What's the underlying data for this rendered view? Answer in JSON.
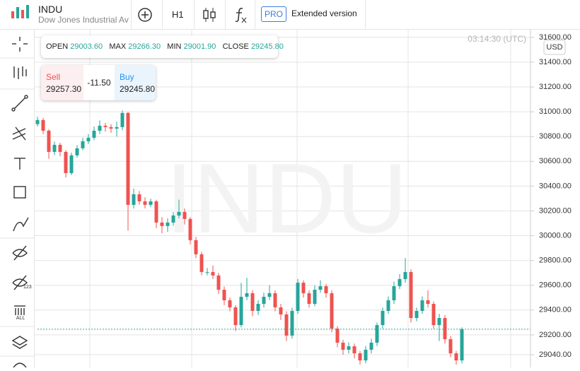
{
  "header": {
    "symbol": "INDU",
    "name": "Dow Jones Industrial Ave",
    "timeframe": "H1",
    "pro_badge": "PRO",
    "pro_label": "Extended version"
  },
  "left_toolbar": {
    "badge_123": "123",
    "badge_all": "ALL"
  },
  "quote": {
    "open_label": "OPEN",
    "open": "29003.60",
    "max_label": "MAX",
    "max": "29266.30",
    "min_label": "MIN",
    "min": "29001.90",
    "close_label": "CLOSE",
    "close": "29245.80"
  },
  "trade": {
    "sell_label": "Sell",
    "sell": "29257.30",
    "spread": "-11.50",
    "buy_label": "Buy",
    "buy": "29245.80"
  },
  "clock": "03:14:30 (UTC)",
  "currency": "USD",
  "watermark": "INDU",
  "chart_data": {
    "type": "candlestick",
    "up_color": "#26a69a",
    "down_color": "#ef5350",
    "grid": true,
    "ylim": [
      28937,
      31662
    ],
    "yticks": [
      {
        "value": 29040,
        "label": "29040.00"
      },
      {
        "value": 29200,
        "label": "29200.00"
      },
      {
        "value": 29400,
        "label": "29400.00"
      },
      {
        "value": 29600,
        "label": "29600.00"
      },
      {
        "value": 29800,
        "label": "29800.00"
      },
      {
        "value": 30000,
        "label": "30000.00"
      },
      {
        "value": 30200,
        "label": "30200.00"
      },
      {
        "value": 30400,
        "label": "30400.00"
      },
      {
        "value": 30600,
        "label": "30600.00"
      },
      {
        "value": 30800,
        "label": "30800.00"
      },
      {
        "value": 31000,
        "label": "31000.00"
      },
      {
        "value": 31200,
        "label": "31200.00"
      },
      {
        "value": 31400,
        "label": "31400.00"
      },
      {
        "value": 31600,
        "label": "31600.00"
      }
    ],
    "open": [
      30900,
      30933,
      30847,
      30676,
      30733,
      30676,
      30505,
      30648,
      30705,
      30762,
      30790,
      30847,
      30887,
      30876,
      30864,
      30876,
      30990,
      30249,
      30334,
      30277,
      30249,
      30277,
      30106,
      30078,
      30106,
      30163,
      30192,
      30135,
      29964,
      29850,
      29707,
      29707,
      29679,
      29564,
      29479,
      29422,
      29279,
      29507,
      29536,
      29393,
      29450,
      29507,
      29536,
      29422,
      29365,
      29194,
      29393,
      29621,
      29536,
      29450,
      29564,
      29593,
      29536,
      29251,
      29137,
      29080,
      29108,
      29051,
      28994,
      29080,
      29137,
      29279,
      29393,
      29479,
      29593,
      29650,
      29707,
      29336,
      29393,
      29479,
      29450,
      29279,
      29336,
      29165,
      29051,
      28994
    ],
    "high": [
      30960,
      30950,
      30860,
      30760,
      30750,
      30690,
      30670,
      30730,
      30790,
      30820,
      30880,
      30930,
      30910,
      30900,
      30920,
      31010,
      31000,
      30380,
      30360,
      30310,
      30300,
      30290,
      30150,
      30140,
      30190,
      30290,
      30220,
      30150,
      29990,
      29870,
      29740,
      29760,
      29700,
      29590,
      29500,
      29440,
      29620,
      29660,
      29560,
      29480,
      29540,
      29600,
      29560,
      29450,
      29390,
      29420,
      29650,
      29640,
      29560,
      29600,
      29640,
      29610,
      29560,
      29270,
      29160,
      29140,
      29130,
      29070,
      29110,
      29170,
      29300,
      29420,
      29510,
      29630,
      29690,
      29820,
      29730,
      29420,
      29510,
      29560,
      29470,
      29370,
      29360,
      29190,
      29070,
      29260
    ],
    "low": [
      30880,
      30820,
      30620,
      30650,
      30640,
      30470,
      30490,
      30630,
      30690,
      30740,
      30770,
      30820,
      30840,
      30830,
      30800,
      30850,
      30040,
      30220,
      30250,
      30220,
      30230,
      30060,
      30020,
      30030,
      30080,
      30140,
      30090,
      29930,
      29820,
      29680,
      29680,
      29650,
      29530,
      29440,
      29390,
      29230,
      29260,
      29480,
      29350,
      29360,
      29420,
      29480,
      29390,
      29320,
      29150,
      29170,
      29370,
      29500,
      29420,
      29430,
      29540,
      29500,
      29220,
      29100,
      29040,
      29050,
      29010,
      28960,
      28970,
      29050,
      29110,
      29250,
      29370,
      29450,
      29570,
      29620,
      29300,
      29310,
      29370,
      29420,
      29250,
      29150,
      29130,
      29020,
      28960,
      28970
    ],
    "close": [
      30933,
      30847,
      30676,
      30733,
      30676,
      30505,
      30648,
      30705,
      30762,
      30790,
      30847,
      30887,
      30876,
      30864,
      30876,
      30990,
      30249,
      30334,
      30277,
      30249,
      30277,
      30106,
      30078,
      30106,
      30163,
      30192,
      30135,
      29964,
      29850,
      29707,
      29707,
      29679,
      29564,
      29479,
      29422,
      29279,
      29507,
      29536,
      29393,
      29450,
      29507,
      29536,
      29422,
      29365,
      29194,
      29393,
      29621,
      29536,
      29450,
      29564,
      29593,
      29536,
      29251,
      29137,
      29080,
      29108,
      29051,
      28994,
      29080,
      29137,
      29279,
      29393,
      29479,
      29593,
      29650,
      29707,
      29336,
      29393,
      29479,
      29450,
      29279,
      29336,
      29165,
      29051,
      28994,
      29245.8
    ]
  }
}
